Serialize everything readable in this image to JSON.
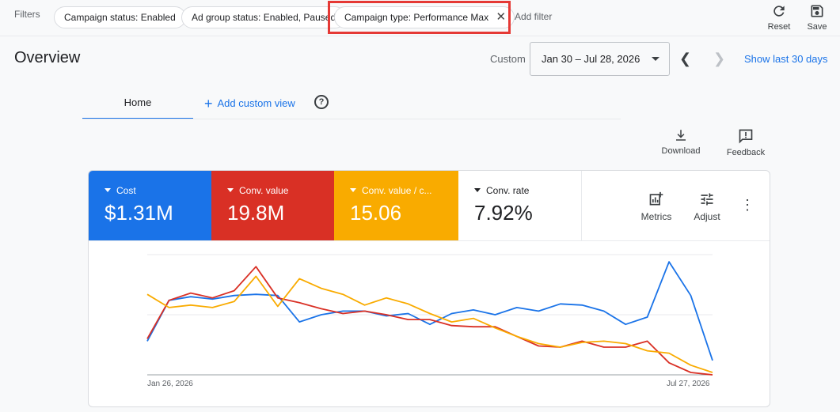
{
  "filters": {
    "label": "Filters",
    "chips": [
      {
        "label": "Campaign status: Enabled"
      },
      {
        "label": "Ad group status: Enabled, Paused"
      },
      {
        "label": "Campaign type: Performance Max"
      }
    ],
    "add_filter": "Add filter",
    "reset_label": "Reset",
    "save_label": "Save"
  },
  "header": {
    "title": "Overview",
    "range_type": "Custom",
    "date_range": "Jan 30 – Jul 28, 2026",
    "show_last": "Show last 30 days"
  },
  "tabs": {
    "home": "Home",
    "add_custom_view": "Add custom view"
  },
  "actions": {
    "download": "Download",
    "feedback": "Feedback"
  },
  "metrics": [
    {
      "label": "Cost",
      "value": "$1.31M",
      "color": "#1a73e8"
    },
    {
      "label": "Conv. value",
      "value": "19.8M",
      "color": "#d93025"
    },
    {
      "label": "Conv. value / c...",
      "value": "15.06",
      "color": "#f9ab00"
    },
    {
      "label": "Conv. rate",
      "value": "7.92%",
      "color": "#ffffff"
    }
  ],
  "card_tools": {
    "metrics": "Metrics",
    "adjust": "Adjust"
  },
  "chart_data": {
    "type": "line",
    "x_start_label": "Jan 26, 2026",
    "x_end_label": "Jul 27, 2026",
    "ylim": [
      0,
      100
    ],
    "grid": true,
    "series": [
      {
        "color": "#1a73e8",
        "values": [
          28,
          62,
          65,
          63,
          66,
          67,
          66,
          44,
          50,
          53,
          53,
          49,
          51,
          42,
          51,
          54,
          50,
          56,
          53,
          59,
          58,
          53,
          42,
          48,
          94,
          66,
          12
        ]
      },
      {
        "color": "#d93025",
        "values": [
          30,
          62,
          68,
          64,
          70,
          90,
          64,
          60,
          55,
          51,
          53,
          50,
          46,
          46,
          41,
          40,
          40,
          32,
          24,
          23,
          28,
          23,
          23,
          28,
          10,
          2,
          0
        ]
      },
      {
        "color": "#f9ab00",
        "values": [
          67,
          56,
          58,
          56,
          61,
          82,
          57,
          80,
          72,
          67,
          58,
          64,
          59,
          51,
          44,
          47,
          39,
          32,
          26,
          23,
          27,
          28,
          26,
          20,
          18,
          8,
          2
        ]
      }
    ]
  }
}
